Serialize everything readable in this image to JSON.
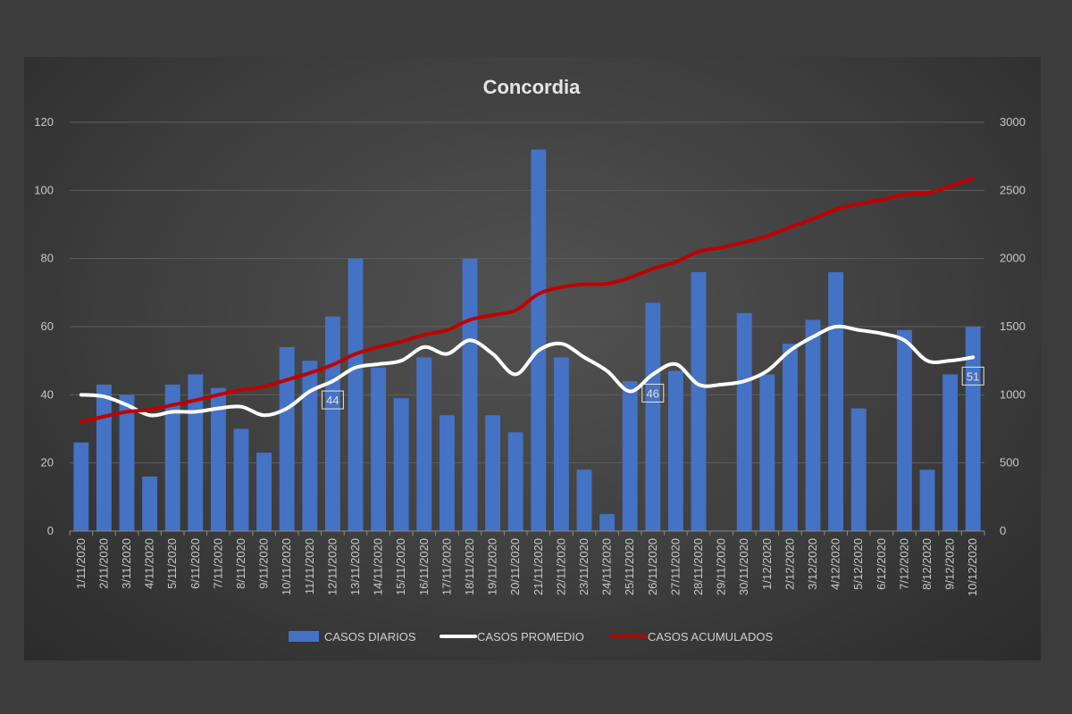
{
  "chart_data": {
    "type": "bar",
    "title": "Concordia",
    "categories": [
      "1/11/2020",
      "2/11/2020",
      "3/11/2020",
      "4/11/2020",
      "5/11/2020",
      "6/11/2020",
      "7/11/2020",
      "8/11/2020",
      "9/11/2020",
      "10/11/2020",
      "11/11/2020",
      "12/11/2020",
      "13/11/2020",
      "14/11/2020",
      "15/11/2020",
      "16/11/2020",
      "17/11/2020",
      "18/11/2020",
      "19/11/2020",
      "20/11/2020",
      "21/11/2020",
      "22/11/2020",
      "23/11/2020",
      "24/11/2020",
      "25/11/2020",
      "26/11/2020",
      "27/11/2020",
      "28/11/2020",
      "29/11/2020",
      "30/11/2020",
      "1/12/2020",
      "2/12/2020",
      "3/12/2020",
      "4/12/2020",
      "5/12/2020",
      "6/12/2020",
      "7/12/2020",
      "8/12/2020",
      "9/12/2020",
      "10/12/2020"
    ],
    "y_left": {
      "min": 0,
      "max": 120,
      "ticks": [
        0,
        20,
        40,
        60,
        80,
        100,
        120
      ]
    },
    "y_right": {
      "min": 0,
      "max": 3000,
      "ticks": [
        0,
        500,
        1000,
        1500,
        2000,
        2500,
        3000
      ]
    },
    "grid": true,
    "legend_position": "bottom",
    "series": [
      {
        "name": "CASOS DIARIOS",
        "kind": "bar",
        "axis": "left",
        "color": "#4472c4",
        "values": [
          26,
          43,
          40,
          16,
          43,
          46,
          42,
          30,
          23,
          54,
          50,
          63,
          80,
          48,
          39,
          51,
          34,
          80,
          34,
          29,
          112,
          51,
          18,
          5,
          44,
          67,
          47,
          76,
          0,
          64,
          46,
          55,
          62,
          76,
          36,
          0,
          59,
          18,
          46,
          60
        ]
      },
      {
        "name": "CASOS PROMEDIO",
        "kind": "line",
        "axis": "left",
        "color": "#ffffff",
        "values": [
          40,
          39.5,
          37,
          34,
          35,
          35,
          36,
          36.5,
          34,
          36,
          41,
          44,
          48,
          49,
          50,
          54,
          52,
          56,
          52,
          46,
          53,
          55,
          51,
          47,
          41,
          46,
          49,
          43,
          43,
          44,
          47,
          53,
          57,
          60,
          59,
          58,
          56,
          50,
          50,
          51
        ]
      },
      {
        "name": "CASOS ACUMULADOS",
        "kind": "line",
        "axis": "right",
        "color": "#c00000",
        "values": [
          800,
          840,
          875,
          890,
          925,
          960,
          1000,
          1035,
          1060,
          1110,
          1160,
          1220,
          1300,
          1350,
          1390,
          1440,
          1475,
          1550,
          1585,
          1620,
          1740,
          1790,
          1810,
          1815,
          1860,
          1925,
          1975,
          2050,
          2080,
          2120,
          2165,
          2230,
          2290,
          2360,
          2400,
          2430,
          2470,
          2480,
          2530,
          2590
        ]
      }
    ],
    "data_labels": [
      {
        "series": "CASOS PROMEDIO",
        "category": "12/11/2020",
        "text": "44"
      },
      {
        "series": "CASOS PROMEDIO",
        "category": "26/11/2020",
        "text": "46"
      },
      {
        "series": "CASOS PROMEDIO",
        "category": "10/12/2020",
        "text": "51"
      }
    ]
  }
}
